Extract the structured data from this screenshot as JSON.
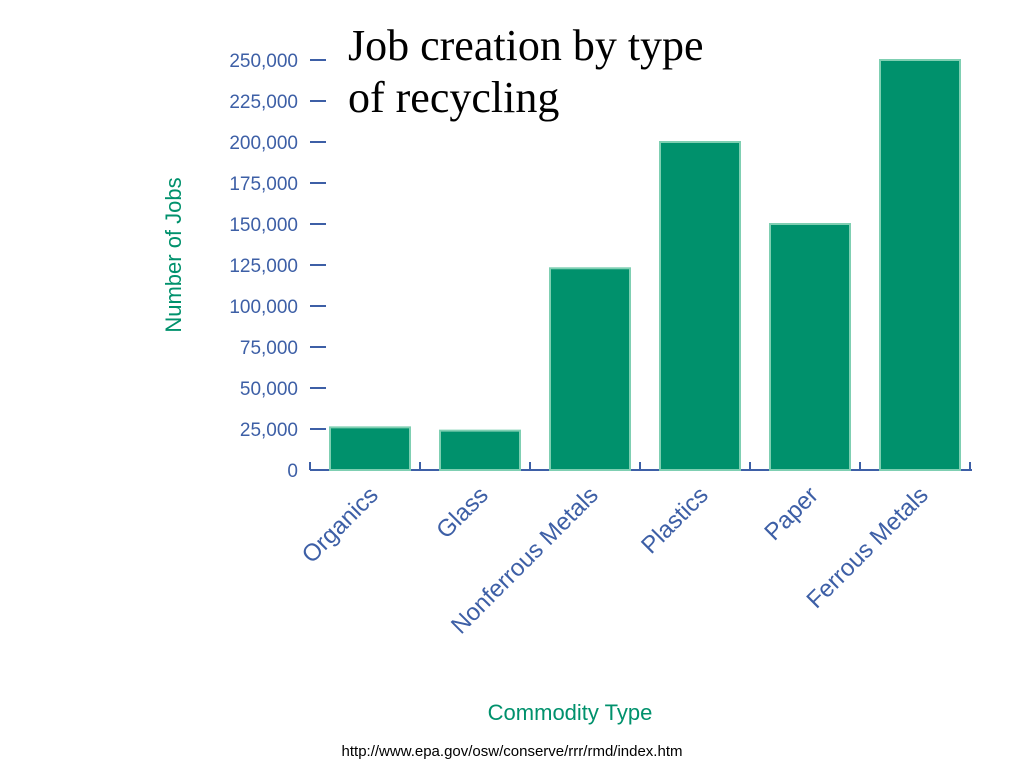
{
  "chart_data": {
    "type": "bar",
    "title": "Job creation by type of recycling",
    "x_label": "Commodity Type",
    "y_label": "Number of Jobs",
    "source": "http://www.epa.gov/osw/conserve/rrr/rmd/index.htm",
    "categories": [
      "Organics",
      "Glass",
      "Nonferrous Metals",
      "Plastics",
      "Paper",
      "Ferrous Metals"
    ],
    "values": [
      26000,
      24000,
      123000,
      200000,
      150000,
      250000
    ],
    "color": "#00916c",
    "ylim": [
      0,
      250000
    ],
    "yticks": [
      0,
      {
        "value": 25000,
        "label": "25,000"
      },
      {
        "value": 50000,
        "label": "50,000"
      },
      {
        "value": 75000,
        "label": "75,000"
      },
      {
        "value": 100000,
        "label": "100,000"
      },
      {
        "value": 125000,
        "label": "125,000"
      },
      {
        "value": 150000,
        "label": "150,000"
      },
      {
        "value": 175000,
        "label": "175,000"
      },
      {
        "value": 200000,
        "label": "200,000"
      },
      {
        "value": 225000,
        "label": "225,000"
      },
      {
        "value": 250000,
        "label": "250,000"
      }
    ],
    "grid": false
  }
}
